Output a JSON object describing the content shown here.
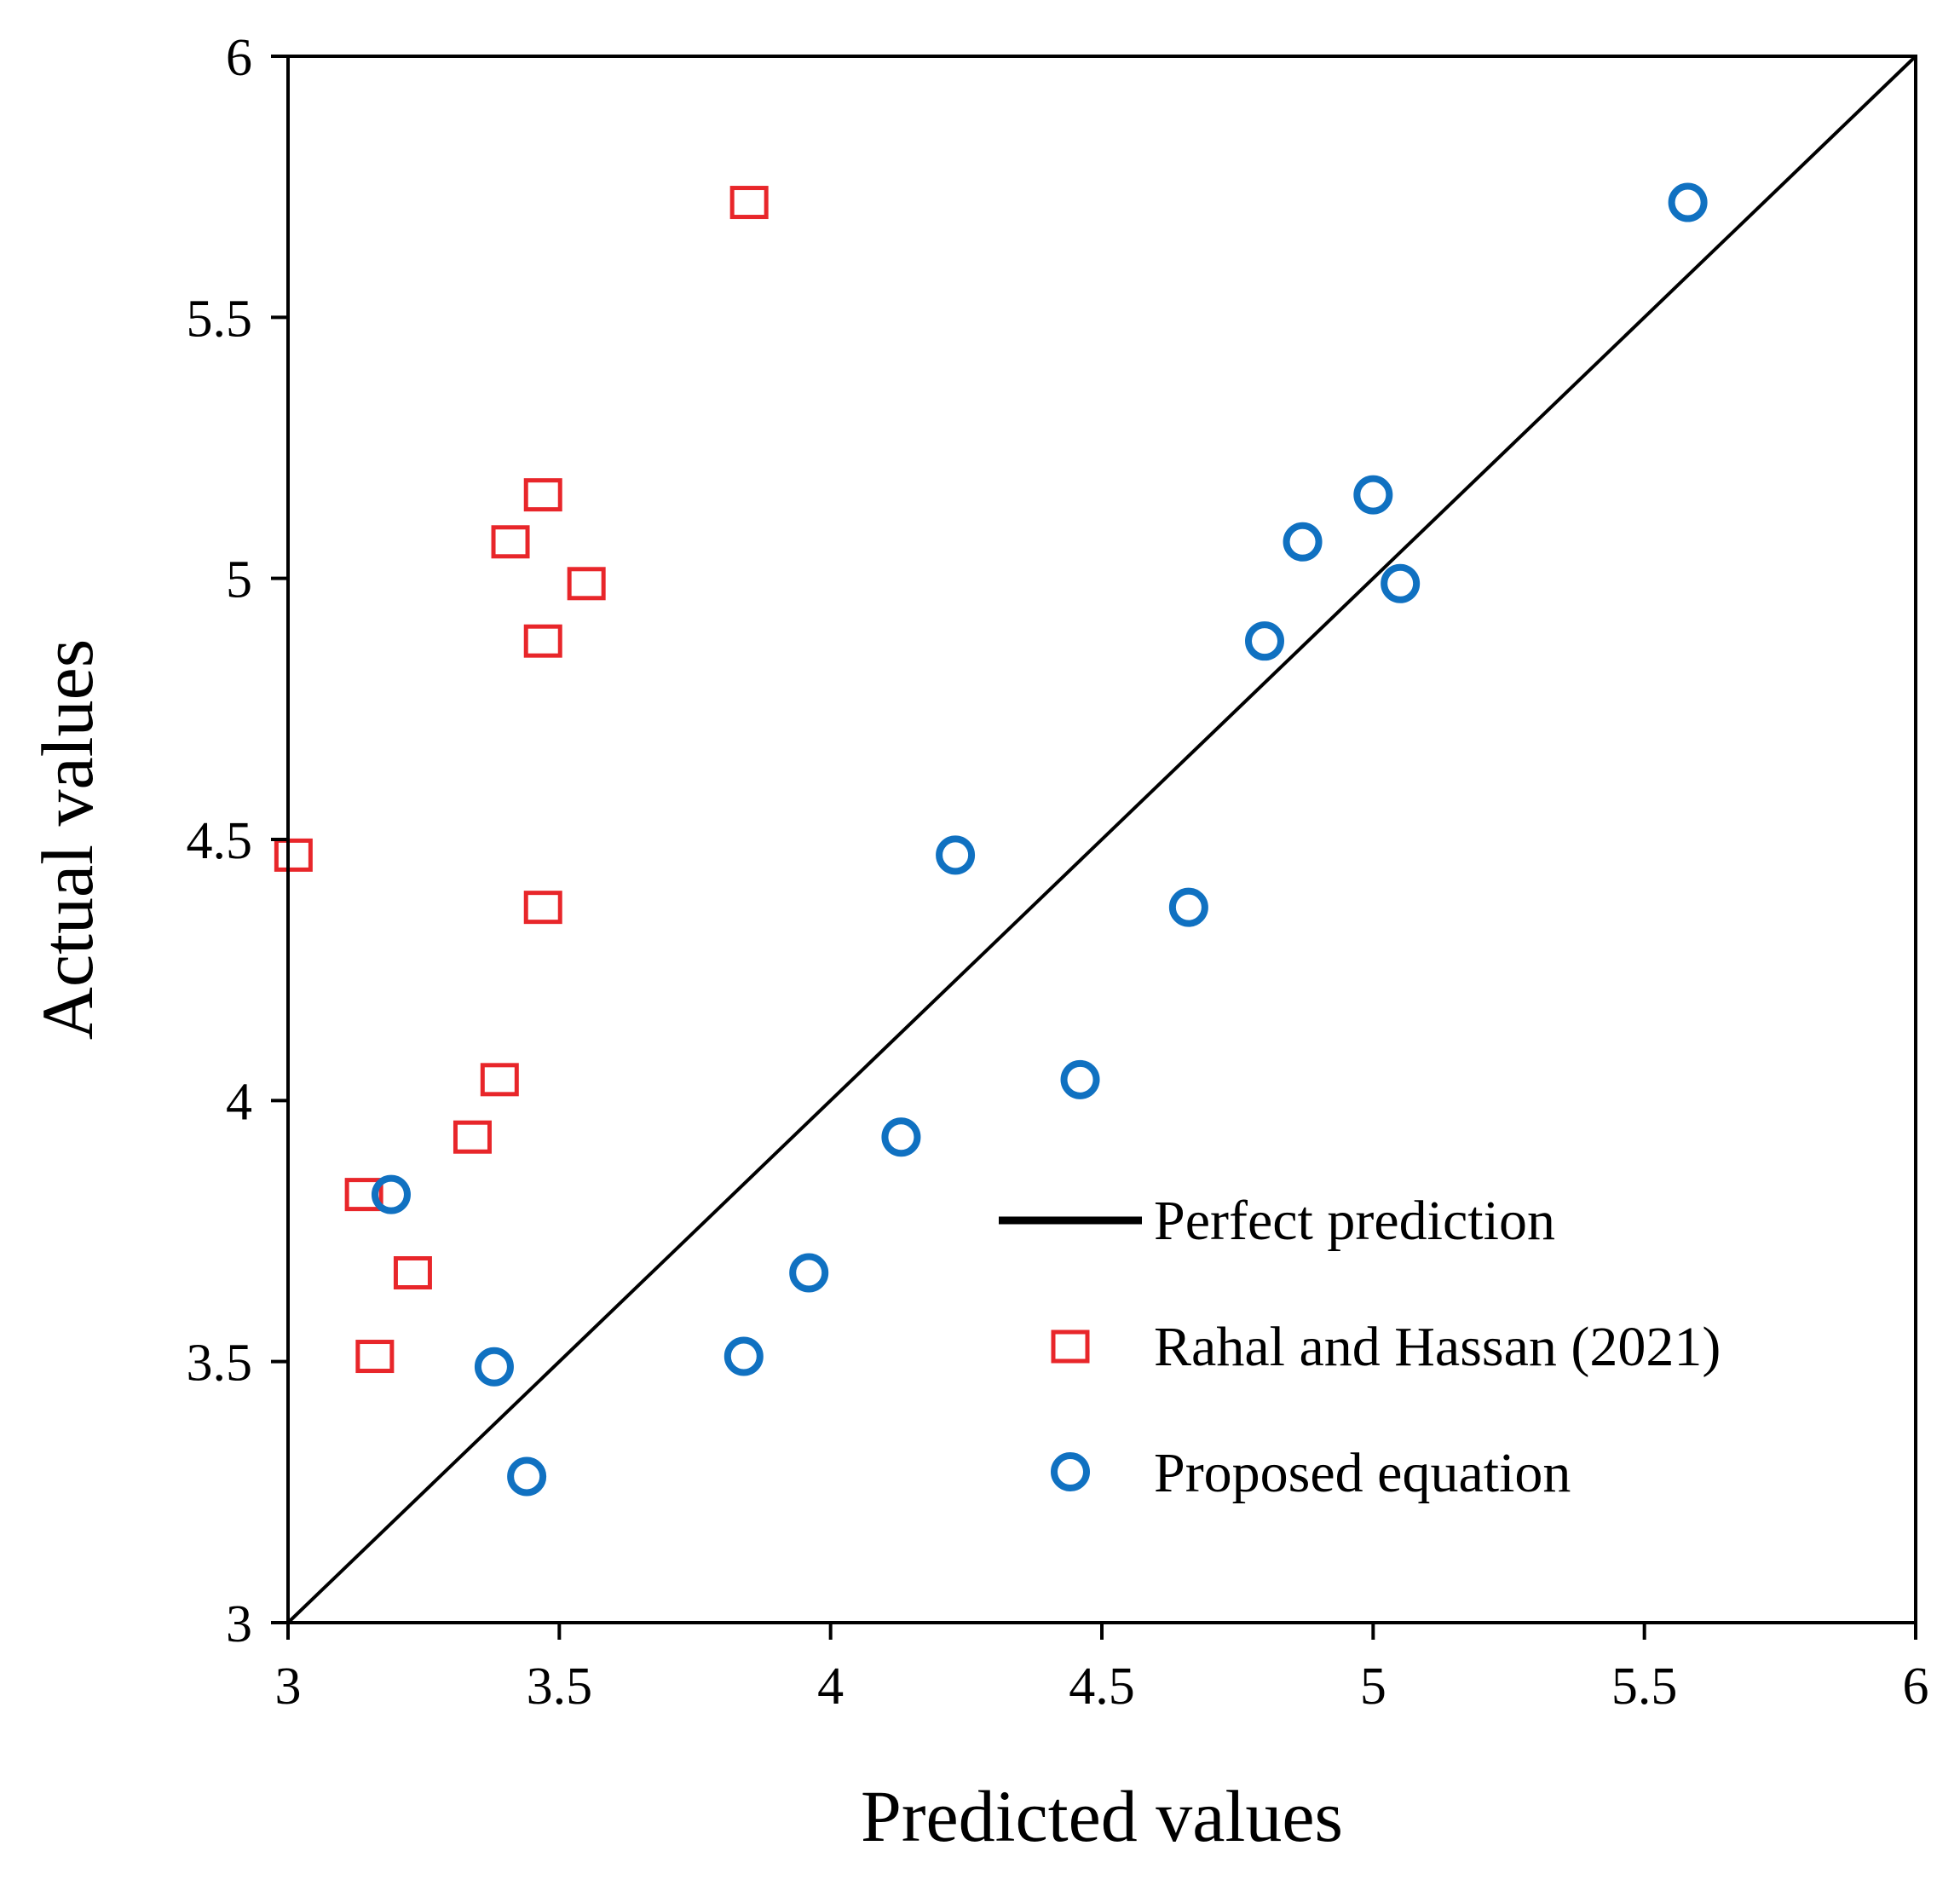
{
  "chart_data": {
    "type": "scatter",
    "title": "",
    "xlabel": "Predicted values",
    "ylabel": "Actual values",
    "xlim": [
      3,
      6
    ],
    "ylim": [
      3,
      6
    ],
    "x_ticks": [
      "3",
      "3.5",
      "4",
      "4.5",
      "5",
      "5.5",
      "6"
    ],
    "y_ticks": [
      "3",
      "3.5",
      "4",
      "4.5",
      "5",
      "5.5",
      "6"
    ],
    "grid": false,
    "legend_position": "bottom-right",
    "reference_line": {
      "name": "Perfect prediction",
      "x": [
        3,
        6
      ],
      "y": [
        3,
        6
      ],
      "color": "#000000"
    },
    "series": [
      {
        "name": "Rahal and Hassan (2021)",
        "marker": "square",
        "color": "#e8262a",
        "points": [
          {
            "x": 3.85,
            "y": 5.72
          },
          {
            "x": 3.47,
            "y": 5.16
          },
          {
            "x": 3.41,
            "y": 5.07
          },
          {
            "x": 3.55,
            "y": 4.99
          },
          {
            "x": 3.47,
            "y": 4.88
          },
          {
            "x": 3.01,
            "y": 4.47
          },
          {
            "x": 3.47,
            "y": 4.37
          },
          {
            "x": 3.39,
            "y": 4.04
          },
          {
            "x": 3.34,
            "y": 3.93
          },
          {
            "x": 3.14,
            "y": 3.82
          },
          {
            "x": 3.23,
            "y": 3.67
          },
          {
            "x": 3.16,
            "y": 3.51
          }
        ]
      },
      {
        "name": "Proposed equation",
        "marker": "circle",
        "color": "#1071c1",
        "points": [
          {
            "x": 5.58,
            "y": 5.72
          },
          {
            "x": 5.0,
            "y": 5.16
          },
          {
            "x": 4.87,
            "y": 5.07
          },
          {
            "x": 5.05,
            "y": 4.99
          },
          {
            "x": 4.8,
            "y": 4.88
          },
          {
            "x": 4.23,
            "y": 4.47
          },
          {
            "x": 4.66,
            "y": 4.37
          },
          {
            "x": 4.46,
            "y": 4.04
          },
          {
            "x": 4.13,
            "y": 3.93
          },
          {
            "x": 3.19,
            "y": 3.82
          },
          {
            "x": 3.96,
            "y": 3.67
          },
          {
            "x": 3.84,
            "y": 3.51
          },
          {
            "x": 3.38,
            "y": 3.49
          },
          {
            "x": 3.44,
            "y": 3.28
          }
        ]
      }
    ]
  }
}
